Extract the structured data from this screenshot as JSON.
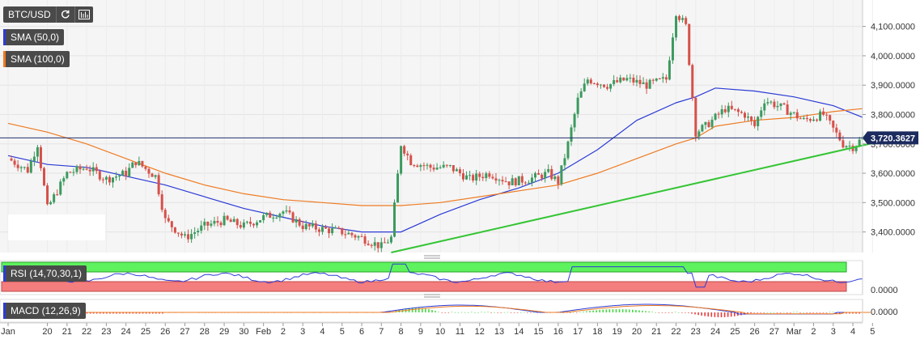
{
  "symbol": "BTC/USD",
  "toolbar": {
    "refresh_icon": "refresh-icon",
    "bars_icon": "bar-chart-icon"
  },
  "indicators": [
    {
      "label": "SMA (50,0)",
      "color": "#2b3bd6"
    },
    {
      "label": "SMA (100,0)",
      "color": "#ee7b22"
    }
  ],
  "sub_panels": {
    "rsi_label": "RSI (14,70,30,1)",
    "macd_label": "MACD (12,26,9)"
  },
  "colors": {
    "up": "#3c9a5f",
    "down": "#d6504a",
    "trendline": "#34c534",
    "rsi_green": "#5ef25e",
    "rsi_red": "#f47d7d"
  },
  "chart_data": [
    {
      "type": "candlestick",
      "title": "BTC/USD",
      "price_label": "3,720.3627",
      "last_price": 3720.3627,
      "ylim": [
        3330,
        4190
      ],
      "y_ticks": [
        "3,400.0000",
        "3,500.0000",
        "3,600.0000",
        "3,700.0000",
        "3,800.0000",
        "3,900.0000",
        "4,000.0000",
        "4,100.0000"
      ],
      "y_tick_values": [
        3400,
        3500,
        3600,
        3700,
        3800,
        3900,
        4000,
        4100
      ],
      "x_labels": [
        "Jan",
        "20",
        "21",
        "22",
        "23",
        "24",
        "25",
        "26",
        "27",
        "28",
        "29",
        "30",
        "Feb",
        "2",
        "3",
        "4",
        "5",
        "6",
        "7",
        "8",
        "9",
        "10",
        "11",
        "12",
        "13",
        "14",
        "15",
        "16",
        "17",
        "18",
        "19",
        "20",
        "21",
        "22",
        "23",
        "24",
        "25",
        "26",
        "27",
        "Mar",
        "2",
        "3",
        "4",
        "5"
      ],
      "x_label_days": [
        0,
        2,
        3,
        4,
        5,
        6,
        7,
        8,
        9,
        10,
        11,
        12,
        13,
        14,
        15,
        16,
        17,
        18,
        19,
        20,
        21,
        22,
        23,
        24,
        25,
        26,
        27,
        28,
        29,
        30,
        31,
        32,
        33,
        34,
        35,
        36,
        37,
        38,
        39,
        40,
        41,
        42,
        43,
        44
      ],
      "close_path": [
        [
          0,
          3650
        ],
        [
          1,
          3610
        ],
        [
          1.5,
          3700
        ],
        [
          2.0,
          3480
        ],
        [
          3.0,
          3600
        ],
        [
          4.0,
          3620
        ],
        [
          5.0,
          3580
        ],
        [
          6.0,
          3600
        ],
        [
          6.5,
          3640
        ],
        [
          7.5,
          3590
        ],
        [
          8.0,
          3440
        ],
        [
          9.0,
          3380
        ],
        [
          10.0,
          3420
        ],
        [
          11.0,
          3440
        ],
        [
          12.0,
          3420
        ],
        [
          13.0,
          3450
        ],
        [
          14.0,
          3470
        ],
        [
          15.0,
          3420
        ],
        [
          16.0,
          3410
        ],
        [
          17.0,
          3400
        ],
        [
          18.0,
          3380
        ],
        [
          19.0,
          3350
        ],
        [
          19.5,
          3380
        ],
        [
          20.0,
          3700
        ],
        [
          20.5,
          3640
        ],
        [
          21.5,
          3620
        ],
        [
          22.5,
          3620
        ],
        [
          23.5,
          3580
        ],
        [
          24.5,
          3600
        ],
        [
          25.5,
          3570
        ],
        [
          26.5,
          3580
        ],
        [
          27.5,
          3600
        ],
        [
          28.0,
          3570
        ],
        [
          28.5,
          3700
        ],
        [
          29.0,
          3850
        ],
        [
          29.5,
          3920
        ],
        [
          30.5,
          3900
        ],
        [
          31.5,
          3920
        ],
        [
          32.5,
          3900
        ],
        [
          33.5,
          3920
        ],
        [
          34.0,
          4150
        ],
        [
          34.5,
          4100
        ],
        [
          35.0,
          3740
        ],
        [
          35.5,
          3760
        ],
        [
          36.5,
          3820
        ],
        [
          37.5,
          3800
        ],
        [
          38.0,
          3760
        ],
        [
          38.5,
          3850
        ],
        [
          39.5,
          3820
        ],
        [
          40.5,
          3780
        ],
        [
          41.5,
          3800
        ],
        [
          42.0,
          3750
        ],
        [
          42.5,
          3700
        ],
        [
          43.0,
          3690
        ],
        [
          43.5,
          3720
        ]
      ],
      "series": [
        {
          "name": "SMA (50,0)",
          "color": "#2b3bd6",
          "points": [
            [
              0,
              3660
            ],
            [
              2,
              3630
            ],
            [
              4,
              3620
            ],
            [
              6,
              3590
            ],
            [
              8,
              3560
            ],
            [
              10,
              3520
            ],
            [
              12,
              3480
            ],
            [
              14,
              3450
            ],
            [
              16,
              3420
            ],
            [
              18,
              3400
            ],
            [
              20,
              3400
            ],
            [
              22,
              3460
            ],
            [
              24,
              3510
            ],
            [
              26,
              3550
            ],
            [
              28,
              3600
            ],
            [
              30,
              3680
            ],
            [
              32,
              3780
            ],
            [
              34,
              3840
            ],
            [
              35,
              3860
            ],
            [
              36,
              3890
            ],
            [
              38,
              3880
            ],
            [
              40,
              3860
            ],
            [
              42,
              3830
            ],
            [
              43.5,
              3790
            ]
          ]
        },
        {
          "name": "SMA (100,0)",
          "color": "#ee7b22",
          "points": [
            [
              0,
              3770
            ],
            [
              2,
              3740
            ],
            [
              4,
              3700
            ],
            [
              6,
              3650
            ],
            [
              8,
              3600
            ],
            [
              10,
              3560
            ],
            [
              12,
              3530
            ],
            [
              14,
              3510
            ],
            [
              16,
              3500
            ],
            [
              18,
              3490
            ],
            [
              20,
              3490
            ],
            [
              22,
              3500
            ],
            [
              24,
              3520
            ],
            [
              26,
              3540
            ],
            [
              28,
              3560
            ],
            [
              30,
              3600
            ],
            [
              32,
              3650
            ],
            [
              34,
              3700
            ],
            [
              35,
              3720
            ],
            [
              36,
              3760
            ],
            [
              38,
              3780
            ],
            [
              40,
              3790
            ],
            [
              42,
              3810
            ],
            [
              43.5,
              3820
            ]
          ]
        }
      ],
      "trendline": [
        [
          19.5,
          3330
        ],
        [
          44.5,
          3710
        ]
      ]
    },
    {
      "type": "line",
      "title": "RSI (14,70,30,1)",
      "y_ticks": [
        "0.0000"
      ],
      "zones": [
        "overbought",
        "oversold"
      ]
    },
    {
      "type": "histogram",
      "title": "MACD (12,26,9)",
      "y_ticks": [
        "0.0000"
      ]
    }
  ]
}
